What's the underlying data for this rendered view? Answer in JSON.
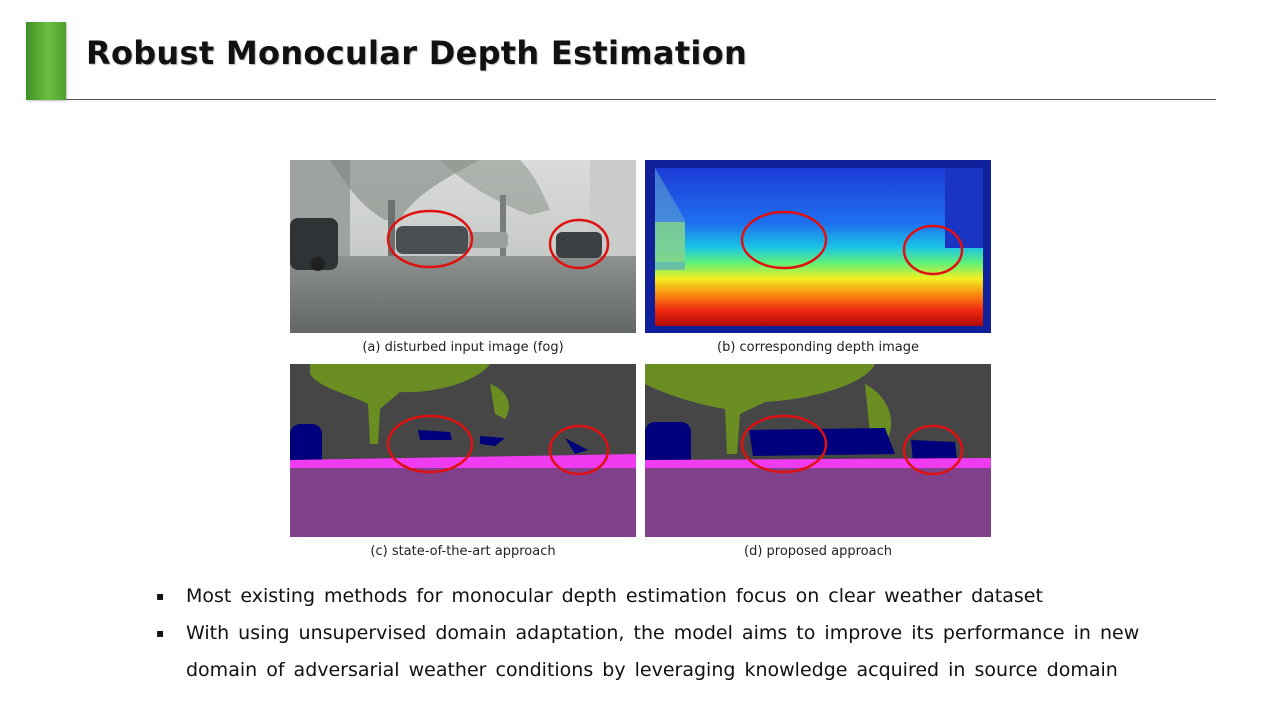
{
  "slide": {
    "title": "Robust Monocular Depth Estimation",
    "accent_color": "#5aac35"
  },
  "figure": {
    "panels": [
      {
        "id": "a",
        "caption": "(a) disturbed input image (fog)",
        "content": "foggy street scene photograph"
      },
      {
        "id": "b",
        "caption": "(b) corresponding depth image",
        "content": "color-coded depth map"
      },
      {
        "id": "c",
        "caption": "(c) state-of-the-art approach",
        "content": "semantic segmentation output"
      },
      {
        "id": "d",
        "caption": "(d) proposed approach",
        "content": "semantic segmentation output"
      }
    ],
    "highlight_color": "#e01010"
  },
  "bullets": [
    {
      "marker": "▪",
      "text": "Most existing methods for monocular depth estimation focus on clear weather dataset"
    },
    {
      "marker": "▪",
      "text": "With using unsupervised domain adaptation, the model aims to improve its performance in new domain of adversarial weather conditions by leveraging knowledge acquired in source domain"
    }
  ]
}
